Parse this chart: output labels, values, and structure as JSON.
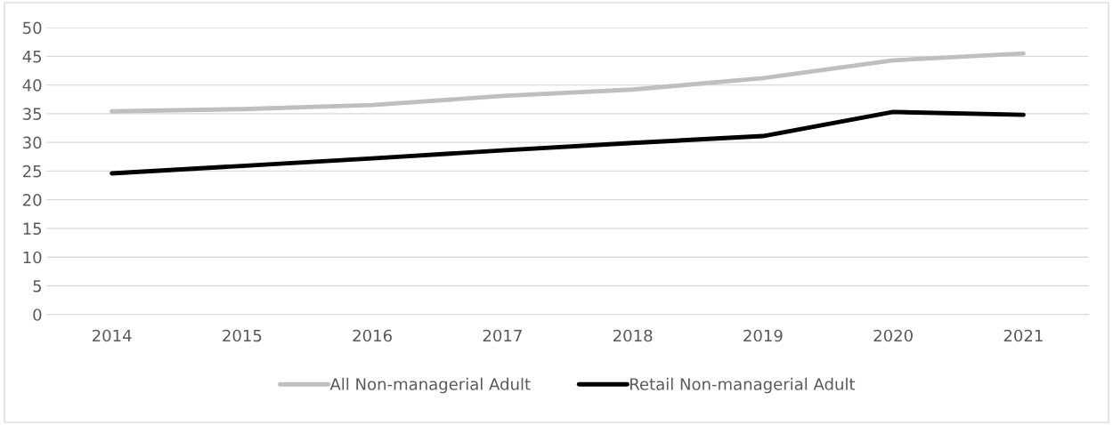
{
  "chart_data": {
    "type": "line",
    "categories": [
      "2014",
      "2015",
      "2016",
      "2017",
      "2018",
      "2019",
      "2020",
      "2021"
    ],
    "series": [
      {
        "name": "All Non-managerial Adult",
        "color": "#bfbfbf",
        "values": [
          35.4,
          35.8,
          36.5,
          38.1,
          39.2,
          41.2,
          44.3,
          45.5
        ]
      },
      {
        "name": "Retail Non-managerial Adult",
        "color": "#000000",
        "values": [
          24.6,
          25.9,
          27.2,
          28.6,
          29.9,
          31.1,
          35.3,
          34.8
        ]
      }
    ],
    "ylim": [
      0,
      50
    ],
    "yticks": [
      0,
      5,
      10,
      15,
      20,
      25,
      30,
      35,
      40,
      45,
      50
    ],
    "grid": "y",
    "legend": "bottom",
    "marker": "none",
    "line_style": "solid"
  }
}
